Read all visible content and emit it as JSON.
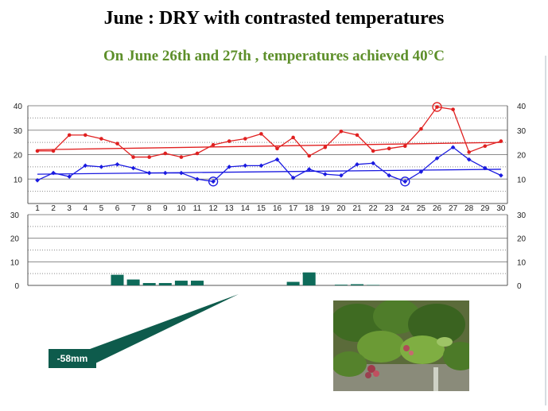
{
  "slide": {
    "title": "June : DRY with contrasted temperatures",
    "subtitle": "On June 26th and 27th , temperatures achieved 40°C",
    "callout": "-58mm"
  },
  "colors": {
    "max_temp": "#e02020",
    "min_temp": "#1a1ae0",
    "rain": "#0e6b5a",
    "subtitle": "#5d8f2a",
    "grid": "#8a8a8a"
  },
  "chart_data": [
    {
      "type": "line",
      "x": [
        1,
        2,
        3,
        4,
        5,
        6,
        7,
        8,
        9,
        10,
        11,
        12,
        13,
        14,
        15,
        16,
        17,
        18,
        19,
        20,
        21,
        22,
        23,
        24,
        25,
        26,
        27,
        28,
        29,
        30
      ],
      "xlim": [
        1,
        30
      ],
      "ylim": [
        0,
        40
      ],
      "yticks": [
        10,
        20,
        30,
        40
      ],
      "grid": true,
      "series": [
        {
          "color": "#e02020",
          "marker": "dot",
          "values": [
            21.5,
            21.5,
            28,
            28,
            26.5,
            24.5,
            19,
            19,
            20.5,
            19,
            20.5,
            24,
            25.5,
            26.5,
            28.5,
            22.5,
            27,
            19.5,
            23,
            29.5,
            28,
            21.5,
            22.5,
            23.5,
            30.5,
            39.5,
            38.5,
            21,
            23.5,
            25.5
          ],
          "trend": [
            22,
            25
          ]
        },
        {
          "color": "#1a1ae0",
          "marker": "diamond",
          "values": [
            9.5,
            12.5,
            11,
            15.5,
            15,
            16,
            14.5,
            12.5,
            12.5,
            12.5,
            10,
            9,
            15,
            15.5,
            15.5,
            18,
            10.5,
            14,
            12,
            11.5,
            16,
            16.5,
            11.5,
            9,
            13,
            18.5,
            23,
            18,
            14.5,
            11.5
          ],
          "trend": [
            12,
            14
          ]
        }
      ],
      "highlights": [
        {
          "x": 26,
          "y": 39.5,
          "color": "#e02020"
        },
        {
          "x": 12,
          "y": 9,
          "color": "#1a1ae0"
        },
        {
          "x": 24,
          "y": 9,
          "color": "#1a1ae0"
        }
      ]
    },
    {
      "type": "bar",
      "categories": [
        1,
        2,
        3,
        4,
        5,
        6,
        7,
        8,
        9,
        10,
        11,
        12,
        13,
        14,
        15,
        16,
        17,
        18,
        19,
        20,
        21,
        22,
        23,
        24,
        25,
        26,
        27,
        28,
        29,
        30
      ],
      "values": [
        0,
        0,
        0,
        0,
        0,
        4.5,
        2.5,
        1,
        1,
        2,
        2,
        0,
        0,
        0,
        0,
        0,
        1.5,
        5.5,
        0,
        0.3,
        0.5,
        0.2,
        0,
        0,
        0,
        0,
        0,
        0,
        0,
        0
      ],
      "ylim": [
        0,
        30
      ],
      "yticks": [
        0,
        10,
        20,
        30
      ],
      "color": "#0e6b5a",
      "grid": true
    }
  ]
}
